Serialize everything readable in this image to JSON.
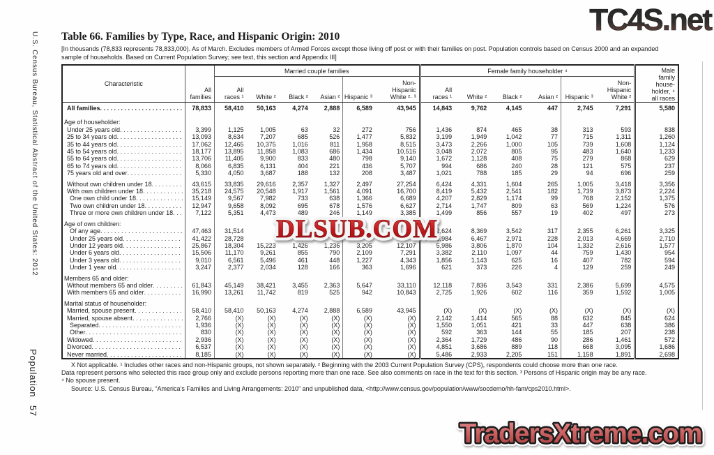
{
  "sidebar": {
    "top": "U.S. Census Bureau, Statistical Abstract of the United States: 2012",
    "bottom": "Population 57"
  },
  "watermarks": {
    "top_right": "TC4S.net",
    "center": "DLSUB.COM",
    "bottom_right": "TradersXtreme.com"
  },
  "title": "Table 66. Families by Type, Race, and Hispanic Origin: 2010",
  "note": "[In thousands (78,833 represents 78,833,000). As of March. Excludes members of Armed Forces except those living off post or with their families on post. Population controls based on Census 2000 and an expanded sample of households. Based on Current Population Survey; see text, this section and Appendix III]",
  "table": {
    "characteristic_header": "Characteristic",
    "all_families_header": "All\nfamilies",
    "group1": "Married couple families",
    "group2": "Female family householder ⁴",
    "male_header": "Male\nfamily\nhouse-\nholder, ⁴\nall races",
    "columns": [
      "All\nraces ¹",
      "White ²",
      "Black ²",
      "Asian ²",
      "Hispanic ³",
      "Non-\nHispanic\nWhite ²· ³",
      "All\nraces ¹",
      "White ²",
      "Black ²",
      "Asian ²",
      "Hispanic ³",
      "Non-\nHispanic\nWhite ²"
    ],
    "rows": [
      {
        "t": "total",
        "l": "All families",
        "v": [
          "78,833",
          "58,410",
          "50,163",
          "4,274",
          "2,888",
          "6,589",
          "43,945",
          "14,843",
          "9,762",
          "4,145",
          "447",
          "2,745",
          "7,291",
          "5,580"
        ]
      },
      {
        "t": "sp"
      },
      {
        "t": "sec",
        "l": "Age of householder:"
      },
      {
        "t": "r",
        "l": "Under 25 years old",
        "v": [
          "3,399",
          "1,125",
          "1,005",
          "63",
          "32",
          "272",
          "756",
          "1,436",
          "874",
          "465",
          "38",
          "313",
          "593",
          "838"
        ]
      },
      {
        "t": "r",
        "l": "25 to 34 years old",
        "v": [
          "13,093",
          "8,634",
          "7,207",
          "685",
          "526",
          "1,477",
          "5,832",
          "3,199",
          "1,949",
          "1,042",
          "77",
          "715",
          "1,311",
          "1,260"
        ]
      },
      {
        "t": "r",
        "l": "35 to 44 years old",
        "v": [
          "17,062",
          "12,465",
          "10,375",
          "1,016",
          "811",
          "1,958",
          "8,515",
          "3,473",
          "2,266",
          "1,000",
          "105",
          "739",
          "1,608",
          "1,124"
        ]
      },
      {
        "t": "r",
        "l": "45 to 54 years old",
        "v": [
          "18,177",
          "13,895",
          "11,858",
          "1,083",
          "686",
          "1,434",
          "10,516",
          "3,048",
          "2,072",
          "805",
          "95",
          "483",
          "1,640",
          "1,233"
        ]
      },
      {
        "t": "r",
        "l": "55 to 64 years old",
        "v": [
          "13,706",
          "11,405",
          "9,900",
          "833",
          "480",
          "798",
          "9,140",
          "1,672",
          "1,128",
          "408",
          "75",
          "279",
          "868",
          "629"
        ]
      },
      {
        "t": "r",
        "l": "65 to 74 years old",
        "v": [
          "8,066",
          "6,835",
          "6,131",
          "404",
          "221",
          "436",
          "5,707",
          "994",
          "686",
          "240",
          "28",
          "121",
          "575",
          "237"
        ]
      },
      {
        "t": "r",
        "l": "75 years old and over",
        "v": [
          "5,330",
          "4,050",
          "3,687",
          "188",
          "132",
          "208",
          "3,487",
          "1,021",
          "788",
          "185",
          "29",
          "94",
          "696",
          "259"
        ]
      },
      {
        "t": "sp"
      },
      {
        "t": "r",
        "l": "Without own children under 18",
        "v": [
          "43,615",
          "33,835",
          "29,616",
          "2,357",
          "1,327",
          "2,497",
          "27,254",
          "6,424",
          "4,331",
          "1,604",
          "265",
          "1,005",
          "3,418",
          "3,356"
        ]
      },
      {
        "t": "r",
        "l": "With own children under 18",
        "v": [
          "35,218",
          "24,575",
          "20,548",
          "1,917",
          "1,561",
          "4,091",
          "16,700",
          "8,419",
          "5,432",
          "2,541",
          "182",
          "1,739",
          "3,873",
          "2,224"
        ]
      },
      {
        "t": "r2",
        "l": "One own child under 18",
        "v": [
          "15,149",
          "9,567",
          "7,982",
          "733",
          "638",
          "1,366",
          "6,689",
          "4,207",
          "2,829",
          "1,174",
          "99",
          "768",
          "2,152",
          "1,375"
        ]
      },
      {
        "t": "r2",
        "l": "Two own children under 18",
        "v": [
          "12,947",
          "9,658",
          "8,092",
          "695",
          "678",
          "1,576",
          "6,627",
          "2,714",
          "1,747",
          "809",
          "63",
          "569",
          "1,224",
          "576"
        ]
      },
      {
        "t": "r2",
        "l": "Three or more own children under 18",
        "v": [
          "7,122",
          "5,351",
          "4,473",
          "489",
          "246",
          "1,149",
          "3,385",
          "1,499",
          "856",
          "557",
          "19",
          "402",
          "497",
          "273"
        ]
      },
      {
        "t": "sp"
      },
      {
        "t": "sec",
        "l": "Age of own children:"
      },
      {
        "t": "r2",
        "l": "Of any age",
        "v": [
          "47,463",
          "31,514",
          "",
          "",
          "",
          "",
          "",
          "12,624",
          "8,369",
          "3,542",
          "317",
          "2,355",
          "6,261",
          "3,325"
        ]
      },
      {
        "t": "r2",
        "l": "Under 25 years old",
        "v": [
          "41,422",
          "28,728",
          "",
          "",
          "",
          "",
          "",
          "9,984",
          "6,467",
          "2,971",
          "228",
          "2,013",
          "4,669",
          "2,710"
        ]
      },
      {
        "t": "r2",
        "l": "Under 12 years old",
        "v": [
          "25,867",
          "18,304",
          "15,223",
          "1,426",
          "1,236",
          "3,205",
          "12,107",
          "5,986",
          "3,806",
          "1,870",
          "104",
          "1,332",
          "2,616",
          "1,577"
        ]
      },
      {
        "t": "r2",
        "l": "Under 6 years old",
        "v": [
          "15,506",
          "11,170",
          "9,261",
          "855",
          "790",
          "2,109",
          "7,291",
          "3,382",
          "2,110",
          "1,097",
          "44",
          "759",
          "1,430",
          "954"
        ]
      },
      {
        "t": "r2",
        "l": "Under 3 years old",
        "v": [
          "9,010",
          "6,561",
          "5,496",
          "461",
          "448",
          "1,227",
          "4,343",
          "1,856",
          "1,143",
          "625",
          "16",
          "407",
          "782",
          "594"
        ]
      },
      {
        "t": "r2",
        "l": "Under 1 year old",
        "v": [
          "3,247",
          "2,377",
          "2,034",
          "128",
          "166",
          "363",
          "1,696",
          "621",
          "373",
          "226",
          "4",
          "129",
          "259",
          "249"
        ]
      },
      {
        "t": "sp"
      },
      {
        "t": "sec",
        "l": "Members 65 and older:"
      },
      {
        "t": "r",
        "l": "Without members 65 and older",
        "v": [
          "61,843",
          "45,149",
          "38,421",
          "3,455",
          "2,363",
          "5,647",
          "33,110",
          "12,118",
          "7,836",
          "3,543",
          "331",
          "2,386",
          "5,699",
          "4,575"
        ]
      },
      {
        "t": "r",
        "l": "With members 65 and older",
        "v": [
          "16,990",
          "13,261",
          "11,742",
          "819",
          "525",
          "942",
          "10,843",
          "2,725",
          "1,926",
          "602",
          "116",
          "359",
          "1,592",
          "1,005"
        ]
      },
      {
        "t": "sp"
      },
      {
        "t": "sec",
        "l": "Marital status of householder:"
      },
      {
        "t": "r",
        "l": "Married, spouse present",
        "v": [
          "58,410",
          "58,410",
          "50,163",
          "4,274",
          "2,888",
          "6,589",
          "43,945",
          "(X)",
          "(X)",
          "(X)",
          "(X)",
          "(X)",
          "(X)",
          "(X)"
        ]
      },
      {
        "t": "r",
        "l": "Married, spouse absent",
        "v": [
          "2,766",
          "(X)",
          "(X)",
          "(X)",
          "(X)",
          "(X)",
          "(X)",
          "2,142",
          "1,414",
          "565",
          "88",
          "632",
          "845",
          "624"
        ]
      },
      {
        "t": "r2",
        "l": "Separated",
        "v": [
          "1,936",
          "(X)",
          "(X)",
          "(X)",
          "(X)",
          "(X)",
          "(X)",
          "1,550",
          "1,051",
          "421",
          "33",
          "447",
          "638",
          "386"
        ]
      },
      {
        "t": "r2",
        "l": "Other",
        "v": [
          "830",
          "(X)",
          "(X)",
          "(X)",
          "(X)",
          "(X)",
          "(X)",
          "592",
          "363",
          "144",
          "55",
          "185",
          "207",
          "238"
        ]
      },
      {
        "t": "r",
        "l": "Widowed",
        "v": [
          "2,936",
          "(X)",
          "(X)",
          "(X)",
          "(X)",
          "(X)",
          "(X)",
          "2,364",
          "1,729",
          "486",
          "90",
          "286",
          "1,461",
          "572"
        ]
      },
      {
        "t": "r",
        "l": "Divorced",
        "v": [
          "6,537",
          "(X)",
          "(X)",
          "(X)",
          "(X)",
          "(X)",
          "(X)",
          "4,851",
          "3,686",
          "889",
          "118",
          "668",
          "3,095",
          "1,686"
        ]
      },
      {
        "t": "r",
        "l": "Never married",
        "v": [
          "8,185",
          "(X)",
          "(X)",
          "(X)",
          "(X)",
          "(X)",
          "(X)",
          "5,486",
          "2,933",
          "2,205",
          "151",
          "1,158",
          "1,891",
          "2,698"
        ]
      }
    ]
  },
  "footnotes": [
    "X Not applicable. ¹ Includes other races and non-Hispanic groups, not shown separately. ² Beginning with the 2003 Current Population Survey (CPS), respondents could choose more than one race.",
    "Data represent persons who selected this race group only and exclude persons reporting more than one race. See also comments on race in the text for this section. ³ Persons of Hispanic origin may be any race.",
    "⁴ No spouse present.",
    "Source: U.S. Census Bureau, “America’s Families and Living Arrangements: 2010” and unpublished data, <http://www.census.gov/population/www/socdemo/hh-fam/cps2010.html>."
  ]
}
